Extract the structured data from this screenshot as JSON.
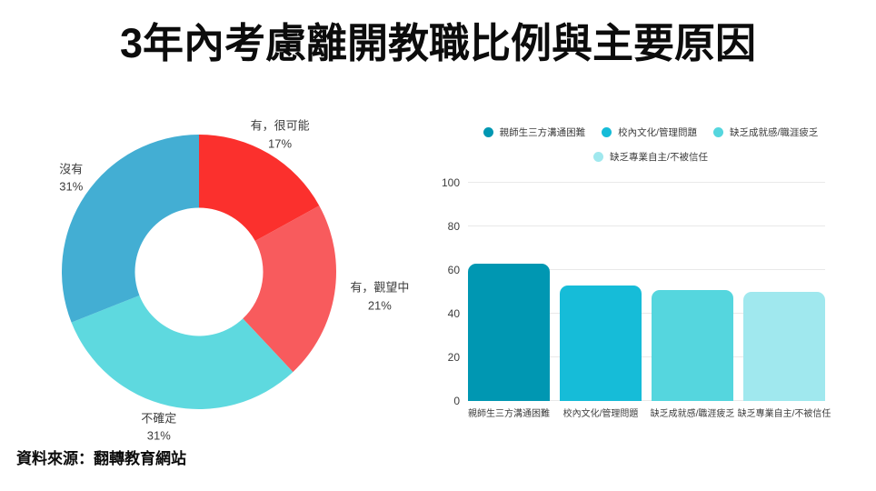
{
  "page": {
    "title": "3年內考慮離開教職比例與主要原因",
    "source": "資料來源：翻轉教育網站"
  },
  "colors": {
    "background": "#ffffff",
    "title_text": "#0c0c0c",
    "label_text": "#3d3d3d",
    "gridline": "#e9e9e9"
  },
  "chart_data": [
    {
      "type": "pie",
      "subtype": "donut",
      "start_angle_deg": 0,
      "direction": "clockwise",
      "slices": [
        {
          "label": "有，很可能",
          "value": 17,
          "value_label": "17%",
          "color": "#fb302d",
          "label_offset": [
            0,
            0
          ]
        },
        {
          "label": "有，觀望中",
          "value": 21,
          "value_label": "21%",
          "color": "#f85b5d",
          "label_offset": [
            26,
            0
          ]
        },
        {
          "label": "不確定",
          "value": 31,
          "value_label": "31%",
          "color": "#5ed9df",
          "label_offset": [
            -6,
            0
          ]
        },
        {
          "label": "沒有",
          "value": 31,
          "value_label": "31%",
          "color": "#43aed3",
          "label_offset": [
            4,
            -5
          ]
        }
      ]
    },
    {
      "type": "bar",
      "categories": [
        "親師生三方溝通困難",
        "校內文化/管理問題",
        "缺乏成就感/職涯疲乏",
        "缺乏專業自主/不被信任"
      ],
      "values": [
        63,
        53,
        51,
        50
      ],
      "colors": [
        "#0097b2",
        "#16bcd8",
        "#55d6de",
        "#a0e8ee"
      ],
      "ylim": [
        0,
        100
      ],
      "yticks": [
        0,
        20,
        40,
        60,
        80,
        100
      ],
      "grid": true,
      "legend_position": "top",
      "legend": [
        "親師生三方溝通困難",
        "校內文化/管理問題",
        "缺乏成就感/職涯疲乏",
        "缺乏專業自主/不被信任"
      ]
    }
  ]
}
